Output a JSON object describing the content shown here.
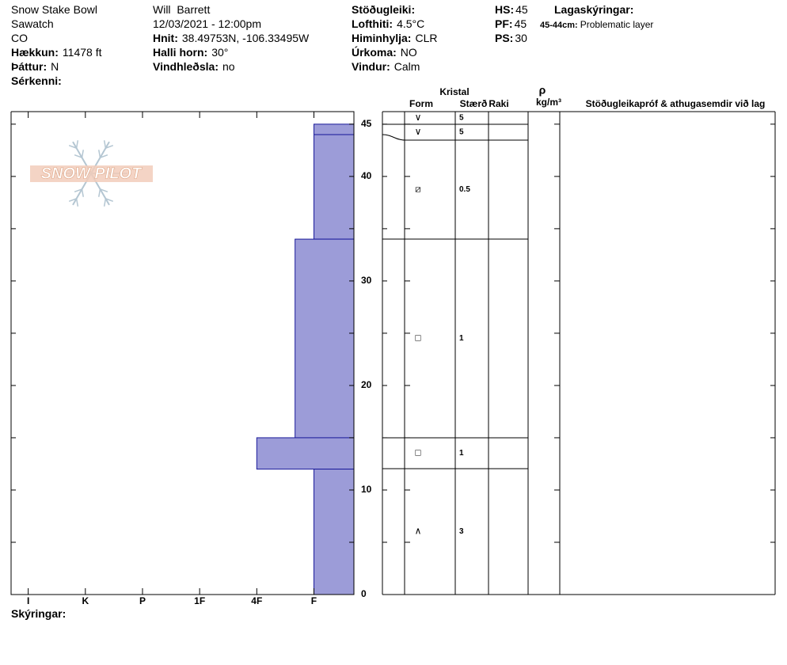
{
  "header": {
    "columns": [
      [
        {
          "value": "Snow Stake Bowl"
        },
        {
          "value": "Sawatch"
        },
        {
          "value": "CO"
        },
        {
          "label": "Hækkun:",
          "value": "11478 ft"
        },
        {
          "label": "Þáttur:",
          "value": "N"
        },
        {
          "label": "Sérkenni:"
        }
      ],
      [
        {
          "value": "Will  Barrett"
        },
        {
          "value": "12/03/2021 - 12:00pm"
        },
        {
          "label": "Hnit:",
          "value": "38.49753N, -106.33495W"
        },
        {
          "label": "Halli horn:",
          "value": "30°"
        },
        {
          "label": "Vindhleðsla:",
          "value": "no"
        }
      ],
      [
        {
          "label": "Stöðugleiki:"
        },
        {
          "label": "Lofthiti:",
          "value": "4.5°C"
        },
        {
          "label": "Himinhylja:",
          "value": "CLR"
        },
        {
          "label": "Úrkoma:",
          "value": "NO"
        },
        {
          "label": "Vindur:",
          "value": "Calm"
        }
      ],
      [
        {
          "label": "HS:",
          "value": 45
        },
        {
          "label": "PF:",
          "value": 45
        },
        {
          "label": "PS:",
          "value": 30
        }
      ]
    ],
    "legend": {
      "title": "Lagaskýringar:",
      "items": [
        {
          "label": "45-44cm:",
          "value": "Problematic layer"
        }
      ]
    }
  },
  "watermark": "SNOW PILOT",
  "chart_data": {
    "type": "snow-profile",
    "color": "#9c9cd8",
    "ylim": [
      0,
      46.2
    ],
    "yticks": [
      0,
      10,
      20,
      30,
      40,
      45
    ],
    "minor_yticks": [
      5,
      15,
      25,
      35
    ],
    "xlim": [
      6.3,
      0.3
    ],
    "xticks": [
      {
        "value": 6,
        "label": "I"
      },
      {
        "value": 5,
        "label": "K"
      },
      {
        "value": 4,
        "label": "P"
      },
      {
        "value": 3,
        "label": "1F"
      },
      {
        "value": 2,
        "label": "4F"
      },
      {
        "value": 1,
        "label": "F"
      }
    ],
    "layers": [
      {
        "top": 45,
        "bottom": 44,
        "hardness": 1
      },
      {
        "top": 44,
        "bottom": 34,
        "hardness": 1
      },
      {
        "top": 34,
        "bottom": 15,
        "hardness": 1.33
      },
      {
        "top": 15,
        "bottom": 12,
        "hardness": 2
      },
      {
        "top": 12,
        "bottom": 0,
        "hardness": 1
      }
    ]
  },
  "table": {
    "header": {
      "crystal": "Kristal",
      "form": "Form",
      "size": "Stærð",
      "moisture": "Raki",
      "rho": "ρ",
      "density_unit": "kg/m³",
      "comments": "Stöðugleikapróf & athugasemdir við lag"
    },
    "rows": [
      {
        "form": "∨",
        "size": 5
      },
      {
        "form": "∨",
        "size": 5
      },
      {
        "form": "⧄",
        "size": 0.5
      },
      {
        "form": "□",
        "size": 1
      },
      {
        "form": "□",
        "size": 1
      },
      {
        "form": "∧",
        "size": 3
      }
    ]
  },
  "footer": "Skýringar:"
}
